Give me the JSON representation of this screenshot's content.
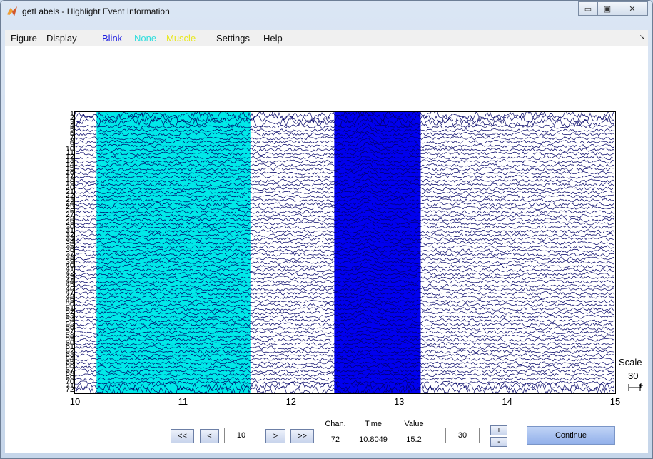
{
  "window": {
    "title": "getLabels - Highlight Event Information",
    "buttons": {
      "minimize": "▭",
      "restore": "▣",
      "close": "✕"
    }
  },
  "menu": {
    "items": [
      {
        "label": "Figure",
        "color": "#111111"
      },
      {
        "label": "Display",
        "color": "#111111"
      },
      {
        "label": "Blink",
        "color": "#2020e0"
      },
      {
        "label": "None",
        "color": "#33dddd"
      },
      {
        "label": "Muscle",
        "color": "#e8e820"
      },
      {
        "label": "Settings",
        "color": "#111111"
      },
      {
        "label": "Help",
        "color": "#111111"
      }
    ],
    "overflow_icon": "↘"
  },
  "plot": {
    "channels": [
      "1",
      "2",
      "3",
      "4",
      "5",
      "6",
      "7",
      "8",
      "9",
      "10",
      "11",
      "12",
      "13",
      "14",
      "15",
      "16",
      "17",
      "18",
      "19",
      "20",
      "21",
      "22",
      "23",
      "24",
      "25",
      "26",
      "27",
      "28",
      "29",
      "30",
      "31",
      "32",
      "33",
      "34",
      "35",
      "36",
      "37",
      "38",
      "39",
      "40",
      "41",
      "42",
      "43",
      "44",
      "45",
      "46",
      "47",
      "48",
      "49",
      "50",
      "51",
      "52",
      "53",
      "54",
      "55",
      "56",
      "57",
      "58",
      "59",
      "60",
      "61",
      "62",
      "63",
      "64",
      "65",
      "66",
      "67",
      "68",
      "69",
      "70",
      "71",
      "72"
    ],
    "x_ticks": [
      "10",
      "11",
      "12",
      "13",
      "14",
      "15"
    ],
    "x_range": [
      10,
      15
    ],
    "highlights": [
      {
        "label": "None",
        "start": 10.2,
        "end": 11.63,
        "color": "#00e8e8"
      },
      {
        "label": "Blink",
        "start": 12.4,
        "end": 13.2,
        "color": "#0000ee"
      }
    ],
    "trace_color": "#000066"
  },
  "scale": {
    "label": "Scale",
    "value": "30",
    "icon": "scale-bar-icon"
  },
  "controls": {
    "prev_page": "<<",
    "prev": "<",
    "window_value": "10",
    "next": ">",
    "next_page": ">>",
    "info": {
      "chan_label": "Chan.",
      "time_label": "Time",
      "value_label": "Value",
      "chan": "72",
      "time": "10.8049",
      "value": "15.2"
    },
    "scale_input": "30",
    "scale_up": "+",
    "scale_down": "-",
    "continue": "Continue"
  }
}
